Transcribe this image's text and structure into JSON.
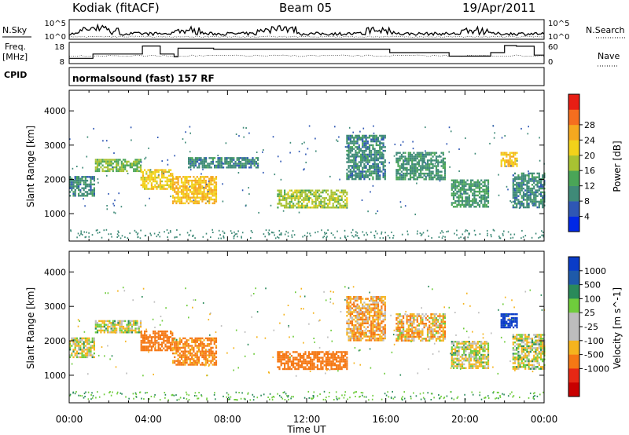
{
  "header": {
    "station": "Kodiak (fitACF)",
    "beam": "Beam 05",
    "date": "19/Apr/2011",
    "cpid_label": "CPID",
    "cpid_text": "normalsound (fast) 157 RF"
  },
  "colors": {
    "power_scale": [
      "#0028e6",
      "#2f57b4",
      "#3f8a78",
      "#4aa557",
      "#a8c232",
      "#f2d21a",
      "#f5a81f",
      "#f56e1f",
      "#e81e14"
    ],
    "velocity_scale": [
      "#0a3cc8",
      "#1e5aaa",
      "#2a8a5a",
      "#6fcc3c",
      "#bdbdbd",
      "#bdbdbd",
      "#f5b41e",
      "#f57814",
      "#e62814",
      "#c80000"
    ]
  },
  "chart_data": [
    {
      "type": "line",
      "panel": "noise",
      "left_label": "N.Sky",
      "right_label": "N.Search",
      "left_ticks": [
        "10^5",
        "10^0"
      ],
      "right_ticks": [
        "10^5",
        "10^0"
      ]
    },
    {
      "type": "line",
      "panel": "frequency",
      "left_label_1": "Freq.",
      "left_label_2": "[MHz]",
      "right_label": "Nave",
      "left_ticks": [
        "18",
        "8"
      ],
      "right_ticks": [
        "60",
        "0"
      ],
      "frequency_steps": {
        "time_h": [
          0,
          1.2,
          3.7,
          4.6,
          5.3,
          5.5,
          7.3,
          16.2,
          19.2,
          21.3,
          22.0,
          22.6,
          23.5,
          24
        ],
        "freq_MHz": [
          10.5,
          12.5,
          16.3,
          12.5,
          11.2,
          15.3,
          14.8,
          13.2,
          11.5,
          13.2,
          16.5,
          16.2,
          12.0,
          11.5
        ]
      }
    },
    {
      "type": "heatmap",
      "panel": "power",
      "ylabel": "Slant Range [km]",
      "yticks": [
        "1000",
        "2000",
        "3000",
        "4000"
      ],
      "ylim": [
        200,
        4600
      ],
      "colorbar_label": "Power [dB]",
      "colorbar_ticks": [
        "4",
        "8",
        "12",
        "16",
        "20",
        "24",
        "28"
      ],
      "regions": [
        {
          "t": [
            0.0,
            1.3
          ],
          "r": [
            1500,
            2100
          ],
          "v": 10
        },
        {
          "t": [
            1.3,
            3.6
          ],
          "r": [
            2250,
            2600
          ],
          "v": 16
        },
        {
          "t": [
            3.6,
            5.2
          ],
          "r": [
            1700,
            2300
          ],
          "v": 22
        },
        {
          "t": [
            5.2,
            7.4
          ],
          "r": [
            1300,
            2100
          ],
          "v": 24
        },
        {
          "t": [
            6.0,
            9.5
          ],
          "r": [
            2350,
            2650
          ],
          "v": 10
        },
        {
          "t": [
            10.5,
            14.0
          ],
          "r": [
            1200,
            1700
          ],
          "v": 18
        },
        {
          "t": [
            14.0,
            16.0
          ],
          "r": [
            2000,
            3300
          ],
          "v": 10
        },
        {
          "t": [
            16.5,
            19.0
          ],
          "r": [
            2000,
            2800
          ],
          "v": 11
        },
        {
          "t": [
            19.3,
            21.2
          ],
          "r": [
            1200,
            2000
          ],
          "v": 12
        },
        {
          "t": [
            21.8,
            22.6
          ],
          "r": [
            2400,
            2800
          ],
          "v": 24
        },
        {
          "t": [
            22.4,
            24.0
          ],
          "r": [
            1200,
            2200
          ],
          "v": 10
        }
      ]
    },
    {
      "type": "heatmap",
      "panel": "velocity",
      "ylabel": "Slant Range [km]",
      "yticks": [
        "1000",
        "2000",
        "3000",
        "4000"
      ],
      "ylim": [
        200,
        4600
      ],
      "xlabel": "Time UT",
      "xticks": [
        "00:00",
        "04:00",
        "08:00",
        "12:00",
        "16:00",
        "20:00",
        "00:00"
      ],
      "xlim": [
        0,
        24
      ],
      "colorbar_label": "Velocity [m s^-1]",
      "colorbar_ticks": [
        "1000",
        "500",
        "100",
        "25",
        "-25",
        "-100",
        "-500",
        "-1000"
      ],
      "regions": [
        {
          "t": [
            0.0,
            1.3
          ],
          "r": [
            1500,
            2100
          ],
          "v": 0
        },
        {
          "t": [
            1.3,
            3.6
          ],
          "r": [
            2250,
            2600
          ],
          "v": 0
        },
        {
          "t": [
            3.6,
            5.2
          ],
          "r": [
            1700,
            2300
          ],
          "v": -300
        },
        {
          "t": [
            5.2,
            7.4
          ],
          "r": [
            1300,
            2100
          ],
          "v": -150
        },
        {
          "t": [
            10.5,
            14.0
          ],
          "r": [
            1200,
            1700
          ],
          "v": -400
        },
        {
          "t": [
            14.0,
            16.0
          ],
          "r": [
            2000,
            3300
          ],
          "v": -80
        },
        {
          "t": [
            16.5,
            19.0
          ],
          "r": [
            2000,
            2800
          ],
          "v": -60
        },
        {
          "t": [
            19.3,
            21.2
          ],
          "r": [
            1200,
            2000
          ],
          "v": 0
        },
        {
          "t": [
            21.8,
            22.6
          ],
          "r": [
            2400,
            2800
          ],
          "v": 800
        },
        {
          "t": [
            22.4,
            24.0
          ],
          "r": [
            1200,
            2200
          ],
          "v": 0
        }
      ]
    }
  ]
}
